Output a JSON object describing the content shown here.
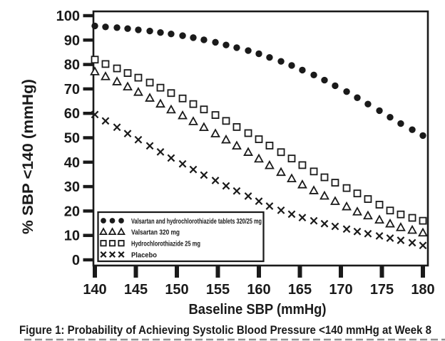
{
  "figure": {
    "caption": "Figure 1: Probability of Achieving Systolic Blood Pressure <140 mmHg at Week 8"
  },
  "chart_data": {
    "type": "scatter",
    "title": "",
    "xlabel": "Baseline SBP (mmHg)",
    "ylabel": "% SBP <140 (mmHg)",
    "xlim": [
      140,
      180
    ],
    "ylim": [
      0,
      100
    ],
    "xticks": [
      140,
      145,
      150,
      155,
      160,
      165,
      170,
      175,
      180
    ],
    "yticks": [
      0,
      10,
      20,
      30,
      40,
      50,
      60,
      70,
      80,
      90,
      100
    ],
    "grid": false,
    "legend_position": "inside-lower-left",
    "marker_color": "#1a1a1a",
    "background_color": "#ffffff",
    "x": [
      140,
      141.3,
      142.7,
      144,
      145.3,
      146.7,
      148,
      149.3,
      150.7,
      152,
      153.3,
      154.7,
      156,
      157.3,
      158.7,
      160,
      161.3,
      162.7,
      164,
      165.3,
      166.7,
      168,
      169.3,
      170.7,
      172,
      173.3,
      174.7,
      176,
      177.3,
      178.7,
      180
    ],
    "series": [
      {
        "name": "Valsartan and hydrochlorothiazide tablets 320/25 mg",
        "marker": "filled-circle",
        "values": [
          95.8,
          95.4,
          95.1,
          94.7,
          94.2,
          93.7,
          93.1,
          92.5,
          91.8,
          91,
          90.1,
          89.1,
          88,
          86.9,
          85.7,
          84.4,
          82.9,
          81.3,
          79.6,
          77.7,
          75.7,
          73.6,
          71.3,
          68.9,
          66.4,
          63.8,
          61.1,
          58.4,
          55.8,
          53.3,
          50.9
        ]
      },
      {
        "name": "Valsartan 320 mg",
        "marker": "open-triangle",
        "values": [
          77,
          75,
          72.9,
          70.8,
          68.6,
          66.2,
          63.8,
          61.4,
          59,
          56.6,
          54.2,
          51.6,
          49.1,
          46.6,
          44,
          41.3,
          38.6,
          35.8,
          33.2,
          30.7,
          28.3,
          26.1,
          23.9,
          21.7,
          19.6,
          18,
          16.3,
          14.7,
          13.2,
          12.1,
          11
        ]
      },
      {
        "name": "Hydrochlorothiazide 25 mg",
        "marker": "open-square",
        "values": [
          82,
          80.2,
          78.4,
          76.5,
          74.6,
          72.6,
          70.5,
          68.3,
          66.1,
          63.8,
          61.6,
          59.3,
          56.9,
          54.4,
          51.9,
          49.4,
          46.8,
          44.1,
          41.5,
          38.8,
          36.2,
          33.8,
          31.6,
          29.4,
          27.2,
          24.9,
          22.6,
          20.2,
          18.6,
          17.2,
          16
        ]
      },
      {
        "name": "Placebo",
        "marker": "x-cross",
        "values": [
          59.5,
          56.9,
          54.3,
          51.7,
          49.2,
          46.7,
          44.2,
          41.7,
          39.3,
          37,
          34.7,
          32.5,
          30.3,
          28.2,
          26.1,
          24,
          22,
          20.3,
          18.7,
          17.3,
          16,
          14.8,
          13.7,
          12.6,
          11.6,
          10.7,
          9.8,
          8.9,
          8,
          7,
          5.9
        ]
      }
    ]
  }
}
